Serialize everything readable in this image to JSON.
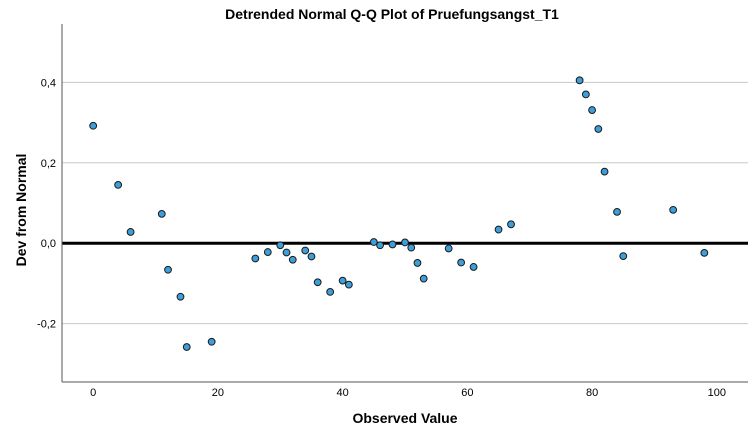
{
  "chart_data": {
    "type": "scatter",
    "title": "Detrended Normal Q-Q Plot of Pruefungsangst_T1",
    "xlabel": "Observed Value",
    "ylabel": "Dev from Normal",
    "xlim": [
      -5,
      105
    ],
    "ylim": [
      -0.345,
      0.545
    ],
    "x_ticks": [
      0,
      20,
      40,
      60,
      80,
      100
    ],
    "x_tick_labels": [
      "0",
      "20",
      "40",
      "60",
      "80",
      "100"
    ],
    "y_ticks": [
      0.4,
      0.2,
      0.0,
      -0.2
    ],
    "y_tick_labels": [
      "0,4",
      "0,2",
      "0,0",
      "-0,2"
    ],
    "grid": "horizontal",
    "reference_line": 0,
    "marker_color": "#3c9fdc",
    "marker_edge_color": "#1a1a1a",
    "points": [
      {
        "x": 0,
        "y": 0.292
      },
      {
        "x": 4,
        "y": 0.145
      },
      {
        "x": 6,
        "y": 0.028
      },
      {
        "x": 11,
        "y": 0.073
      },
      {
        "x": 12,
        "y": -0.066
      },
      {
        "x": 14,
        "y": -0.133
      },
      {
        "x": 15,
        "y": -0.258
      },
      {
        "x": 19,
        "y": -0.245
      },
      {
        "x": 26,
        "y": -0.038
      },
      {
        "x": 28,
        "y": -0.022
      },
      {
        "x": 30,
        "y": -0.005
      },
      {
        "x": 31,
        "y": -0.023
      },
      {
        "x": 32,
        "y": -0.041
      },
      {
        "x": 34,
        "y": -0.018
      },
      {
        "x": 35,
        "y": -0.033
      },
      {
        "x": 36,
        "y": -0.097
      },
      {
        "x": 38,
        "y": -0.121
      },
      {
        "x": 40,
        "y": -0.093
      },
      {
        "x": 41,
        "y": -0.103
      },
      {
        "x": 45,
        "y": 0.003
      },
      {
        "x": 46,
        "y": -0.005
      },
      {
        "x": 48,
        "y": -0.003
      },
      {
        "x": 50,
        "y": 0.002
      },
      {
        "x": 51,
        "y": -0.011
      },
      {
        "x": 52,
        "y": -0.049
      },
      {
        "x": 53,
        "y": -0.088
      },
      {
        "x": 57,
        "y": -0.013
      },
      {
        "x": 59,
        "y": -0.048
      },
      {
        "x": 61,
        "y": -0.059
      },
      {
        "x": 65,
        "y": 0.034
      },
      {
        "x": 67,
        "y": 0.047
      },
      {
        "x": 78,
        "y": 0.405
      },
      {
        "x": 79,
        "y": 0.37
      },
      {
        "x": 80,
        "y": 0.331
      },
      {
        "x": 81,
        "y": 0.284
      },
      {
        "x": 82,
        "y": 0.178
      },
      {
        "x": 84,
        "y": 0.078
      },
      {
        "x": 85,
        "y": -0.032
      },
      {
        "x": 93,
        "y": 0.083
      },
      {
        "x": 98,
        "y": -0.024
      }
    ]
  }
}
